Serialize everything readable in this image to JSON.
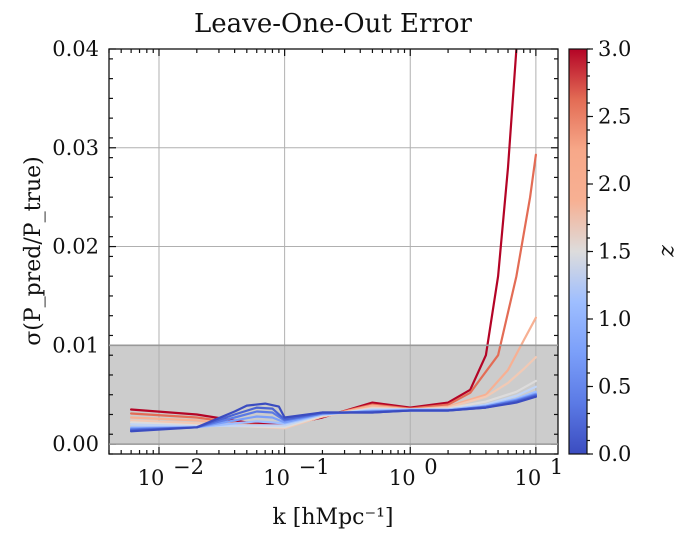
{
  "chart_data": {
    "type": "line",
    "title": "Leave-One-Out Error",
    "xlabel": "k [hMpc⁻¹]",
    "ylabel": "σ(P_pred/P_true)",
    "xscale": "log",
    "xlim": [
      0.004,
      15
    ],
    "ylim": [
      -0.001,
      0.04
    ],
    "yticks": [
      0.0,
      0.01,
      0.02,
      0.03,
      0.04
    ],
    "ytick_labels": [
      "0.00",
      "0.01",
      "0.02",
      "0.03",
      "0.04"
    ],
    "xticks": [
      0.01,
      0.1,
      1,
      10
    ],
    "xtick_labels": [
      {
        "base": "10",
        "exp": "−2"
      },
      {
        "base": "10",
        "exp": "−1"
      },
      {
        "base": "10",
        "exp": "0"
      },
      {
        "base": "10",
        "exp": "1"
      }
    ],
    "grid": true,
    "shaded_band": {
      "y_from": 0.0,
      "y_to": 0.01,
      "color": "#cccccc"
    },
    "colormap": "coolwarm",
    "colorbar": {
      "label": "z",
      "range": [
        0.0,
        3.0
      ],
      "ticks": [
        0.0,
        0.5,
        1.0,
        1.5,
        2.0,
        2.5,
        3.0
      ],
      "tick_labels": [
        "0.0",
        "0.5",
        "1.0",
        "1.5",
        "2.0",
        "2.5",
        "3.0"
      ]
    },
    "series": [
      {
        "z": 3.0,
        "color": "#b40426",
        "points": [
          [
            0.006,
            0.0035
          ],
          [
            0.02,
            0.003
          ],
          [
            0.05,
            0.0022
          ],
          [
            0.1,
            0.0019
          ],
          [
            0.2,
            0.0027
          ],
          [
            0.5,
            0.0042
          ],
          [
            1,
            0.0037
          ],
          [
            2,
            0.0042
          ],
          [
            3,
            0.0055
          ],
          [
            4,
            0.009
          ],
          [
            5,
            0.017
          ],
          [
            6,
            0.028
          ],
          [
            7,
            0.04
          ]
        ]
      },
      {
        "z": 2.5,
        "color": "#e36c55",
        "points": [
          [
            0.006,
            0.0031
          ],
          [
            0.02,
            0.0027
          ],
          [
            0.05,
            0.002
          ],
          [
            0.1,
            0.0018
          ],
          [
            0.2,
            0.0028
          ],
          [
            0.5,
            0.004
          ],
          [
            1,
            0.0036
          ],
          [
            2,
            0.004
          ],
          [
            3,
            0.0052
          ],
          [
            5,
            0.009
          ],
          [
            7,
            0.017
          ],
          [
            9,
            0.025
          ],
          [
            10,
            0.0293
          ]
        ]
      },
      {
        "z": 2.0,
        "color": "#f7b093",
        "points": [
          [
            0.006,
            0.0027
          ],
          [
            0.02,
            0.0024
          ],
          [
            0.05,
            0.0019
          ],
          [
            0.1,
            0.0017
          ],
          [
            0.2,
            0.0028
          ],
          [
            0.5,
            0.0039
          ],
          [
            1,
            0.0035
          ],
          [
            2,
            0.0038
          ],
          [
            4,
            0.005
          ],
          [
            6,
            0.0075
          ],
          [
            8,
            0.0105
          ],
          [
            10,
            0.0128
          ]
        ]
      },
      {
        "z": 1.75,
        "color": "#f2c9b4",
        "points": [
          [
            0.006,
            0.0024
          ],
          [
            0.02,
            0.0021
          ],
          [
            0.05,
            0.0018
          ],
          [
            0.1,
            0.0016
          ],
          [
            0.2,
            0.0028
          ],
          [
            0.5,
            0.0037
          ],
          [
            1,
            0.0035
          ],
          [
            2,
            0.0037
          ],
          [
            4,
            0.0048
          ],
          [
            6,
            0.0062
          ],
          [
            8,
            0.0076
          ],
          [
            10,
            0.0088
          ]
        ]
      },
      {
        "z": 1.5,
        "color": "#dddcdc",
        "points": [
          [
            0.006,
            0.0022
          ],
          [
            0.02,
            0.0019
          ],
          [
            0.05,
            0.0018
          ],
          [
            0.1,
            0.0017
          ],
          [
            0.2,
            0.0029
          ],
          [
            0.5,
            0.0036
          ],
          [
            1,
            0.0035
          ],
          [
            2,
            0.0036
          ],
          [
            4,
            0.0043
          ],
          [
            7,
            0.0053
          ],
          [
            10,
            0.0064
          ]
        ]
      },
      {
        "z": 1.25,
        "color": "#c0d4f5",
        "points": [
          [
            0.006,
            0.002
          ],
          [
            0.02,
            0.0018
          ],
          [
            0.05,
            0.0019
          ],
          [
            0.1,
            0.0019
          ],
          [
            0.2,
            0.003
          ],
          [
            0.5,
            0.0035
          ],
          [
            1,
            0.0035
          ],
          [
            2,
            0.0035
          ],
          [
            4,
            0.004
          ],
          [
            7,
            0.0049
          ],
          [
            10,
            0.0058
          ]
        ]
      },
      {
        "z": 1.0,
        "color": "#9ebeff",
        "points": [
          [
            0.006,
            0.0017
          ],
          [
            0.02,
            0.0017
          ],
          [
            0.04,
            0.0021
          ],
          [
            0.06,
            0.0023
          ],
          [
            0.1,
            0.0021
          ],
          [
            0.2,
            0.003
          ],
          [
            0.5,
            0.0034
          ],
          [
            1,
            0.0035
          ],
          [
            2,
            0.0035
          ],
          [
            4,
            0.0039
          ],
          [
            7,
            0.0046
          ],
          [
            10,
            0.0053
          ]
        ]
      },
      {
        "z": 0.75,
        "color": "#7b9ff9",
        "points": [
          [
            0.006,
            0.0016
          ],
          [
            0.02,
            0.0017
          ],
          [
            0.04,
            0.0024
          ],
          [
            0.06,
            0.0028
          ],
          [
            0.08,
            0.0027
          ],
          [
            0.1,
            0.0022
          ],
          [
            0.2,
            0.0031
          ],
          [
            0.5,
            0.0033
          ],
          [
            1,
            0.0034
          ],
          [
            2,
            0.0034
          ],
          [
            4,
            0.0038
          ],
          [
            7,
            0.0045
          ],
          [
            10,
            0.0051
          ]
        ]
      },
      {
        "z": 0.5,
        "color": "#5b7ae5",
        "points": [
          [
            0.006,
            0.0015
          ],
          [
            0.02,
            0.0017
          ],
          [
            0.04,
            0.0027
          ],
          [
            0.06,
            0.0033
          ],
          [
            0.08,
            0.0032
          ],
          [
            0.1,
            0.0024
          ],
          [
            0.2,
            0.0031
          ],
          [
            0.5,
            0.0033
          ],
          [
            1,
            0.0034
          ],
          [
            2,
            0.0034
          ],
          [
            4,
            0.0038
          ],
          [
            7,
            0.0044
          ],
          [
            10,
            0.005
          ]
        ]
      },
      {
        "z": 0.25,
        "color": "#4a63d3",
        "points": [
          [
            0.006,
            0.0014
          ],
          [
            0.02,
            0.0017
          ],
          [
            0.04,
            0.003
          ],
          [
            0.06,
            0.0037
          ],
          [
            0.08,
            0.0036
          ],
          [
            0.1,
            0.0025
          ],
          [
            0.2,
            0.0032
          ],
          [
            0.5,
            0.0032
          ],
          [
            1,
            0.0034
          ],
          [
            2,
            0.0034
          ],
          [
            4,
            0.0037
          ],
          [
            7,
            0.0043
          ],
          [
            10,
            0.0049
          ]
        ]
      },
      {
        "z": 0.0,
        "color": "#3b4cc0",
        "points": [
          [
            0.006,
            0.0013
          ],
          [
            0.02,
            0.0017
          ],
          [
            0.04,
            0.0033
          ],
          [
            0.05,
            0.0039
          ],
          [
            0.07,
            0.0041
          ],
          [
            0.09,
            0.0038
          ],
          [
            0.1,
            0.0027
          ],
          [
            0.2,
            0.0032
          ],
          [
            0.5,
            0.0032
          ],
          [
            1,
            0.0034
          ],
          [
            2,
            0.0034
          ],
          [
            4,
            0.0037
          ],
          [
            7,
            0.0042
          ],
          [
            10,
            0.0048
          ]
        ]
      }
    ]
  }
}
